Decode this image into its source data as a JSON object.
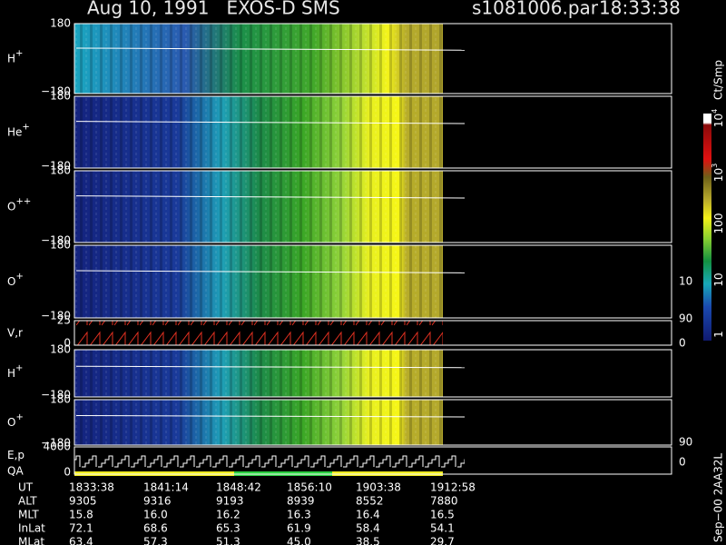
{
  "header": {
    "title": "Aug 10, 1991   EXOS-D SMS",
    "file": "s1081006.par",
    "time": "18:33:38"
  },
  "panels": [
    {
      "label": "H",
      "sup": "+",
      "ticks": [
        "180",
        "−180"
      ]
    },
    {
      "label": "He",
      "sup": "+",
      "ticks": [
        "180",
        "−180"
      ]
    },
    {
      "label": "O",
      "sup": "++",
      "ticks": [
        "180",
        "−180"
      ]
    },
    {
      "label": "O",
      "sup": "+",
      "ticks": [
        "180",
        "−180"
      ],
      "right_ticks": [
        "10"
      ]
    },
    {
      "label": "V,r",
      "ticks": [
        "25",
        "0"
      ],
      "right_ticks": [
        "90",
        "0"
      ]
    },
    {
      "label": "H",
      "sup": "+",
      "ticks": [
        "180",
        "−180"
      ]
    },
    {
      "label": "O",
      "sup": "+",
      "ticks": [
        "180",
        "−180"
      ],
      "right_ticks": [
        "90"
      ]
    },
    {
      "label": "E,p",
      "label2": "QA",
      "ticks": [
        "4000",
        "0"
      ],
      "right_ticks": [
        "0"
      ]
    }
  ],
  "colorbar": {
    "unit": "Ct/Smp",
    "labels": [
      {
        "base": "10",
        "exp": "4"
      },
      {
        "base": "10",
        "exp": "3"
      },
      {
        "base": "100"
      },
      {
        "base": "10"
      },
      {
        "base": "1"
      }
    ]
  },
  "footer_note": "Sep−00  2AA32L",
  "table": {
    "rows": [
      [
        "UT",
        "1833:38",
        "1841:14",
        "1848:42",
        "1856:10",
        "1903:38",
        "1912:58"
      ],
      [
        "ALT",
        "9305",
        "9316",
        "9193",
        "8939",
        "8552",
        "7880"
      ],
      [
        "MLT",
        "15.8",
        "16.0",
        "16.2",
        "16.3",
        "16.4",
        "16.5"
      ],
      [
        "InLat",
        "72.1",
        "68.6",
        "65.3",
        "61.9",
        "58.4",
        "54.1"
      ],
      [
        "MLat",
        "63.4",
        "57.3",
        "51.3",
        "45.0",
        "38.5",
        "29.7"
      ]
    ]
  }
}
